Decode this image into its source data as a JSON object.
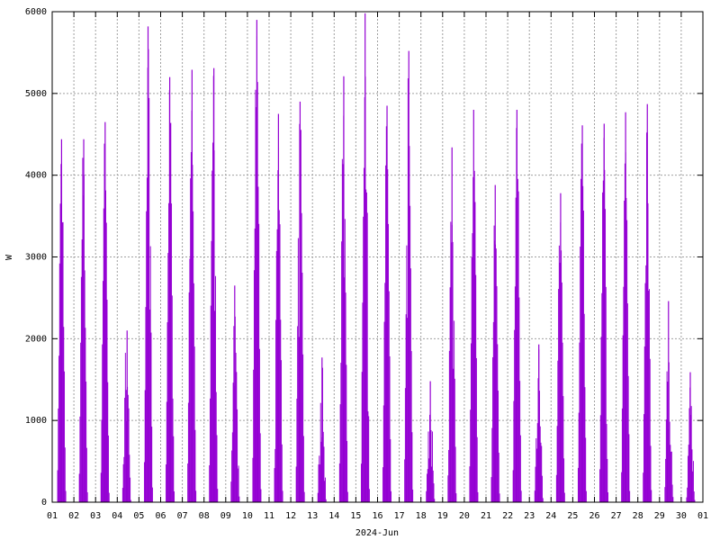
{
  "chart_data": {
    "type": "bar",
    "title": "",
    "xlabel": "2024-Jun",
    "ylabel": "W",
    "ylim": [
      0,
      6000
    ],
    "grid": true,
    "color": "#9400d3",
    "y_ticks": [
      "0",
      "1000",
      "2000",
      "3000",
      "4000",
      "5000",
      "6000"
    ],
    "x_ticks": [
      "01",
      "02",
      "03",
      "04",
      "05",
      "06",
      "07",
      "08",
      "09",
      "10",
      "11",
      "12",
      "13",
      "14",
      "15",
      "16",
      "17",
      "18",
      "19",
      "20",
      "21",
      "22",
      "23",
      "24",
      "25",
      "26",
      "27",
      "28",
      "29",
      "30",
      "01"
    ],
    "x_range": [
      "2024-06-01",
      "2024-07-01"
    ],
    "series": [
      {
        "values_by_day": [
          {
            "date": "2024-06-01",
            "daily_peak_w": 4440
          },
          {
            "date": "2024-06-02",
            "daily_peak_w": 4440
          },
          {
            "date": "2024-06-03",
            "daily_peak_w": 4650
          },
          {
            "date": "2024-06-04",
            "daily_peak_w": 2100
          },
          {
            "date": "2024-06-05",
            "daily_peak_w": 5820
          },
          {
            "date": "2024-06-06",
            "daily_peak_w": 5200
          },
          {
            "date": "2024-06-07",
            "daily_peak_w": 5290
          },
          {
            "date": "2024-06-08",
            "daily_peak_w": 5310
          },
          {
            "date": "2024-06-09",
            "daily_peak_w": 2650
          },
          {
            "date": "2024-06-10",
            "daily_peak_w": 5900
          },
          {
            "date": "2024-06-11",
            "daily_peak_w": 4750
          },
          {
            "date": "2024-06-12",
            "daily_peak_w": 4900
          },
          {
            "date": "2024-06-13",
            "daily_peak_w": 1770
          },
          {
            "date": "2024-06-14",
            "daily_peak_w": 5210
          },
          {
            "date": "2024-06-15",
            "daily_peak_w": 5980
          },
          {
            "date": "2024-06-16",
            "daily_peak_w": 4850
          },
          {
            "date": "2024-06-17",
            "daily_peak_w": 5520
          },
          {
            "date": "2024-06-18",
            "daily_peak_w": 1480
          },
          {
            "date": "2024-06-19",
            "daily_peak_w": 4340
          },
          {
            "date": "2024-06-20",
            "daily_peak_w": 4800
          },
          {
            "date": "2024-06-21",
            "daily_peak_w": 3880
          },
          {
            "date": "2024-06-22",
            "daily_peak_w": 4800
          },
          {
            "date": "2024-06-23",
            "daily_peak_w": 1930
          },
          {
            "date": "2024-06-24",
            "daily_peak_w": 3780
          },
          {
            "date": "2024-06-25",
            "daily_peak_w": 4610
          },
          {
            "date": "2024-06-26",
            "daily_peak_w": 4630
          },
          {
            "date": "2024-06-27",
            "daily_peak_w": 4770
          },
          {
            "date": "2024-06-28",
            "daily_peak_w": 4870
          },
          {
            "date": "2024-06-29",
            "daily_peak_w": 2460
          },
          {
            "date": "2024-06-30",
            "daily_peak_w": 1590
          }
        ]
      }
    ]
  }
}
